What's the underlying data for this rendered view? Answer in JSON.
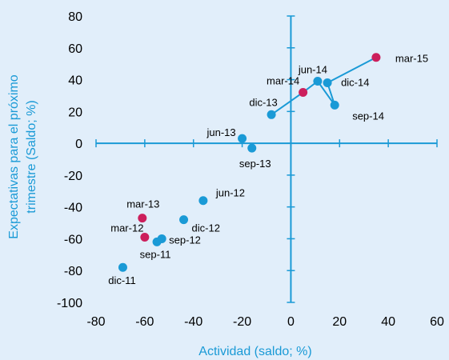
{
  "chart_data": {
    "type": "scatter",
    "xlabel": "Actividad (saldo; %)",
    "ylabel_lines": [
      "Expectativas para el próximo",
      "trimestre (Saldo; %)"
    ],
    "xlim": [
      -80,
      60
    ],
    "ylim": [
      -100,
      80
    ],
    "xticks": [
      "-80",
      "-60",
      "-40",
      "-20",
      "0",
      "20",
      "40",
      "60"
    ],
    "yticks": [
      "80",
      "60",
      "40",
      "20",
      "0",
      "-20",
      "-40",
      "-60",
      "-80",
      "-100"
    ],
    "colors": {
      "line": "#1a9ad6",
      "point": "#1a9ad6",
      "highlight": "#cc1f5c",
      "axis": "#1a9ad6",
      "background": "#e1eefa"
    },
    "points": [
      {
        "label": "sep-11",
        "x": -55,
        "y": -62,
        "highlight": false
      },
      {
        "label": "dic-11",
        "x": -69,
        "y": -78,
        "highlight": false
      },
      {
        "label": "mar-12",
        "x": -60,
        "y": -59,
        "highlight": true
      },
      {
        "label": "jun-12",
        "x": -36,
        "y": -36,
        "highlight": false
      },
      {
        "label": "sep-12",
        "x": -53,
        "y": -60,
        "highlight": false
      },
      {
        "label": "dic-12",
        "x": -44,
        "y": -48,
        "highlight": false
      },
      {
        "label": "mar-13",
        "x": -61,
        "y": -47,
        "highlight": true
      },
      {
        "label": "jun-13",
        "x": -20,
        "y": 3,
        "highlight": false
      },
      {
        "label": "sep-13",
        "x": -16,
        "y": -3,
        "highlight": false
      },
      {
        "label": "dic-13",
        "x": -8,
        "y": 18,
        "highlight": false
      },
      {
        "label": "mar-14",
        "x": 5,
        "y": 32,
        "highlight": true
      },
      {
        "label": "jun-14",
        "x": 11,
        "y": 39,
        "highlight": false
      },
      {
        "label": "sep-14",
        "x": 18,
        "y": 24,
        "highlight": false
      },
      {
        "label": "dic-14",
        "x": 15,
        "y": 38,
        "highlight": false
      },
      {
        "label": "mar-15",
        "x": 35,
        "y": 54,
        "highlight": true
      }
    ],
    "line_path": [
      "dic-13",
      "mar-14",
      "jun-14",
      "sep-14",
      "dic-14",
      "mar-15"
    ]
  }
}
